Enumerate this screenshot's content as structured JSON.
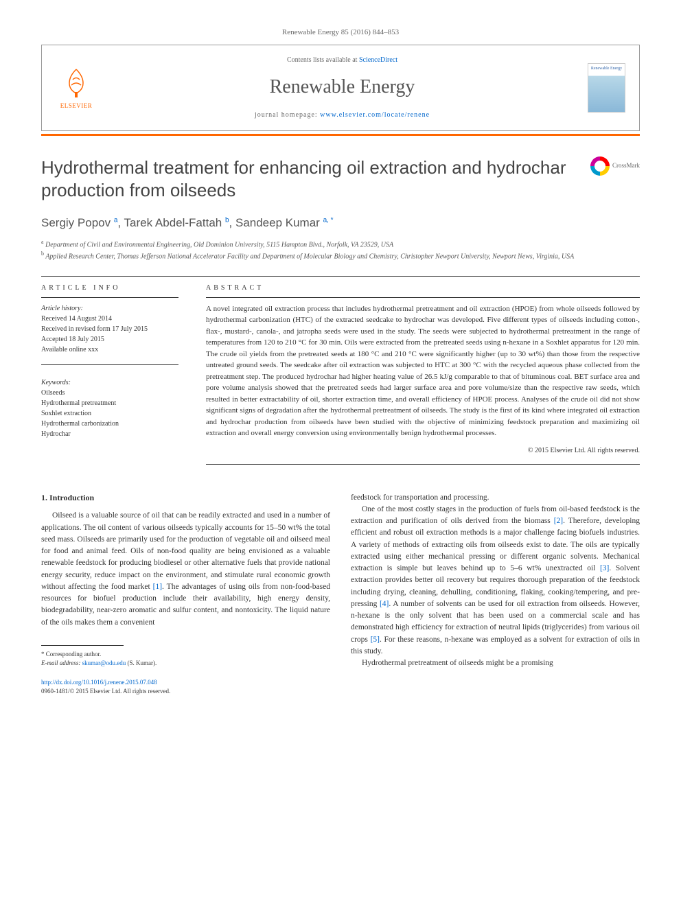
{
  "journal_ref": "Renewable Energy 85 (2016) 844–853",
  "header": {
    "contents_prefix": "Contents lists available at ",
    "contents_link": "ScienceDirect",
    "journal_name": "Renewable Energy",
    "homepage_prefix": "journal homepage: ",
    "homepage_url": "www.elsevier.com/locate/renene",
    "elsevier_label": "ELSEVIER",
    "cover_title": "Renewable Energy"
  },
  "crossmark_label": "CrossMark",
  "title": "Hydrothermal treatment for enhancing oil extraction and hydrochar production from oilseeds",
  "authors_html": "Sergiy Popov <sup>a</sup>, Tarek Abdel-Fattah <sup>b</sup>, Sandeep Kumar <sup>a, *</sup>",
  "affiliations": {
    "a": "a Department of Civil and Environmental Engineering, Old Dominion University, 5115 Hampton Blvd., Norfolk, VA 23529, USA",
    "b": "b Applied Research Center, Thomas Jefferson National Accelerator Facility and Department of Molecular Biology and Chemistry, Christopher Newport University, Newport News, Virginia, USA"
  },
  "info": {
    "label": "ARTICLE INFO",
    "history_label": "Article history:",
    "received": "Received 14 August 2014",
    "revised": "Received in revised form 17 July 2015",
    "accepted": "Accepted 18 July 2015",
    "online": "Available online xxx",
    "keywords_label": "Keywords:",
    "keywords": [
      "Oilseeds",
      "Hydrothermal pretreatment",
      "Soxhlet extraction",
      "Hydrothermal carbonization",
      "Hydrochar"
    ]
  },
  "abstract": {
    "label": "ABSTRACT",
    "text": "A novel integrated oil extraction process that includes hydrothermal pretreatment and oil extraction (HPOE) from whole oilseeds followed by hydrothermal carbonization (HTC) of the extracted seedcake to hydrochar was developed. Five different types of oilseeds including cotton-, flax-, mustard-, canola-, and jatropha seeds were used in the study. The seeds were subjected to hydrothermal pretreatment in the range of temperatures from 120 to 210 °C for 30 min. Oils were extracted from the pretreated seeds using n-hexane in a Soxhlet apparatus for 120 min. The crude oil yields from the pretreated seeds at 180 °C and 210 °C were significantly higher (up to 30 wt%) than those from the respective untreated ground seeds. The seedcake after oil extraction was subjected to HTC at 300 °C with the recycled aqueous phase collected from the pretreatment step. The produced hydrochar had higher heating value of 26.5 kJ/g comparable to that of bituminous coal. BET surface area and pore volume analysis showed that the pretreated seeds had larger surface area and pore volume/size than the respective raw seeds, which resulted in better extractability of oil, shorter extraction time, and overall efficiency of HPOE process. Analyses of the crude oil did not show significant signs of degradation after the hydrothermal pretreatment of oilseeds. The study is the first of its kind where integrated oil extraction and hydrochar production from oilseeds have been studied with the objective of minimizing feedstock preparation and maximizing oil extraction and overall energy conversion using environmentally benign hydrothermal processes.",
    "copyright": "© 2015 Elsevier Ltd. All rights reserved."
  },
  "body": {
    "section_num": "1.",
    "section_title": "Introduction",
    "col1_p1": "Oilseed is a valuable source of oil that can be readily extracted and used in a number of applications. The oil content of various oilseeds typically accounts for 15–50 wt% the total seed mass. Oilseeds are primarily used for the production of vegetable oil and oilseed meal for food and animal feed. Oils of non-food quality are being envisioned as a valuable renewable feedstock for producing biodiesel or other alternative fuels that provide national energy security, reduce impact on the environment, and stimulate rural economic growth without affecting the food market [1]. The advantages of using oils from non-food-based resources for biofuel production include their availability, high energy density, biodegradability, near-zero aromatic and sulfur content, and nontoxicity. The liquid nature of the oils makes them a convenient",
    "col2_p1": "feedstock for transportation and processing.",
    "col2_p2": "One of the most costly stages in the production of fuels from oil-based feedstock is the extraction and purification of oils derived from the biomass [2]. Therefore, developing efficient and robust oil extraction methods is a major challenge facing biofuels industries. A variety of methods of extracting oils from oilseeds exist to date. The oils are typically extracted using either mechanical pressing or different organic solvents. Mechanical extraction is simple but leaves behind up to 5–6 wt% unextracted oil [3]. Solvent extraction provides better oil recovery but requires thorough preparation of the feedstock including drying, cleaning, dehulling, conditioning, flaking, cooking/tempering, and pre-pressing [4]. A number of solvents can be used for oil extraction from oilseeds. However, n-hexane is the only solvent that has been used on a commercial scale and has demonstrated high efficiency for extraction of neutral lipids (triglycerides) from various oil crops [5]. For these reasons, n-hexane was employed as a solvent for extraction of oils in this study.",
    "col2_p3": "Hydrothermal pretreatment of oilseeds might be a promising"
  },
  "footnote": {
    "corr": "* Corresponding author.",
    "email_label": "E-mail address: ",
    "email": "skumar@odu.edu",
    "email_suffix": " (S. Kumar)."
  },
  "doi": {
    "url": "http://dx.doi.org/10.1016/j.renene.2015.07.048",
    "issn_line": "0960-1481/© 2015 Elsevier Ltd. All rights reserved."
  },
  "colors": {
    "link": "#0066cc",
    "accent": "#ff6600",
    "text": "#333333"
  }
}
